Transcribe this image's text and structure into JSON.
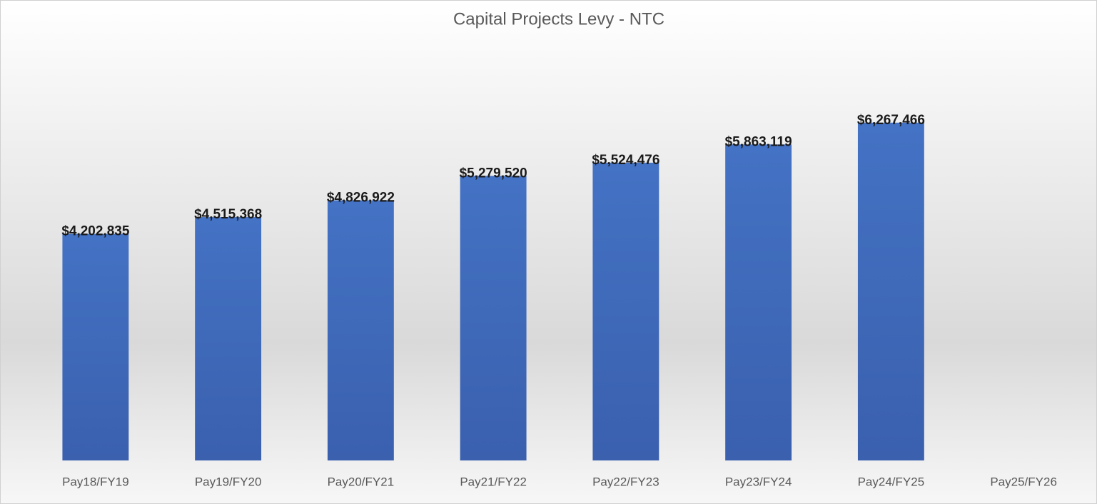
{
  "chart_data": {
    "type": "bar",
    "title": "Capital Projects Levy - NTC",
    "categories": [
      "Pay18/FY19",
      "Pay19/FY20",
      "Pay20/FY21",
      "Pay21/FY22",
      "Pay22/FY23",
      "Pay23/FY24",
      "Pay24/FY25",
      "Pay25/FY26"
    ],
    "values": [
      4202835,
      4515368,
      4826922,
      5279520,
      5524476,
      5863119,
      6267466,
      null
    ],
    "value_labels": [
      "$4,202,835",
      "$4,515,368",
      "$4,826,922",
      "$5,279,520",
      "$5,524,476",
      "$5,863,119",
      "$6,267,466",
      null
    ],
    "color": "#4472c4",
    "ylim": [
      0,
      8000000
    ]
  }
}
